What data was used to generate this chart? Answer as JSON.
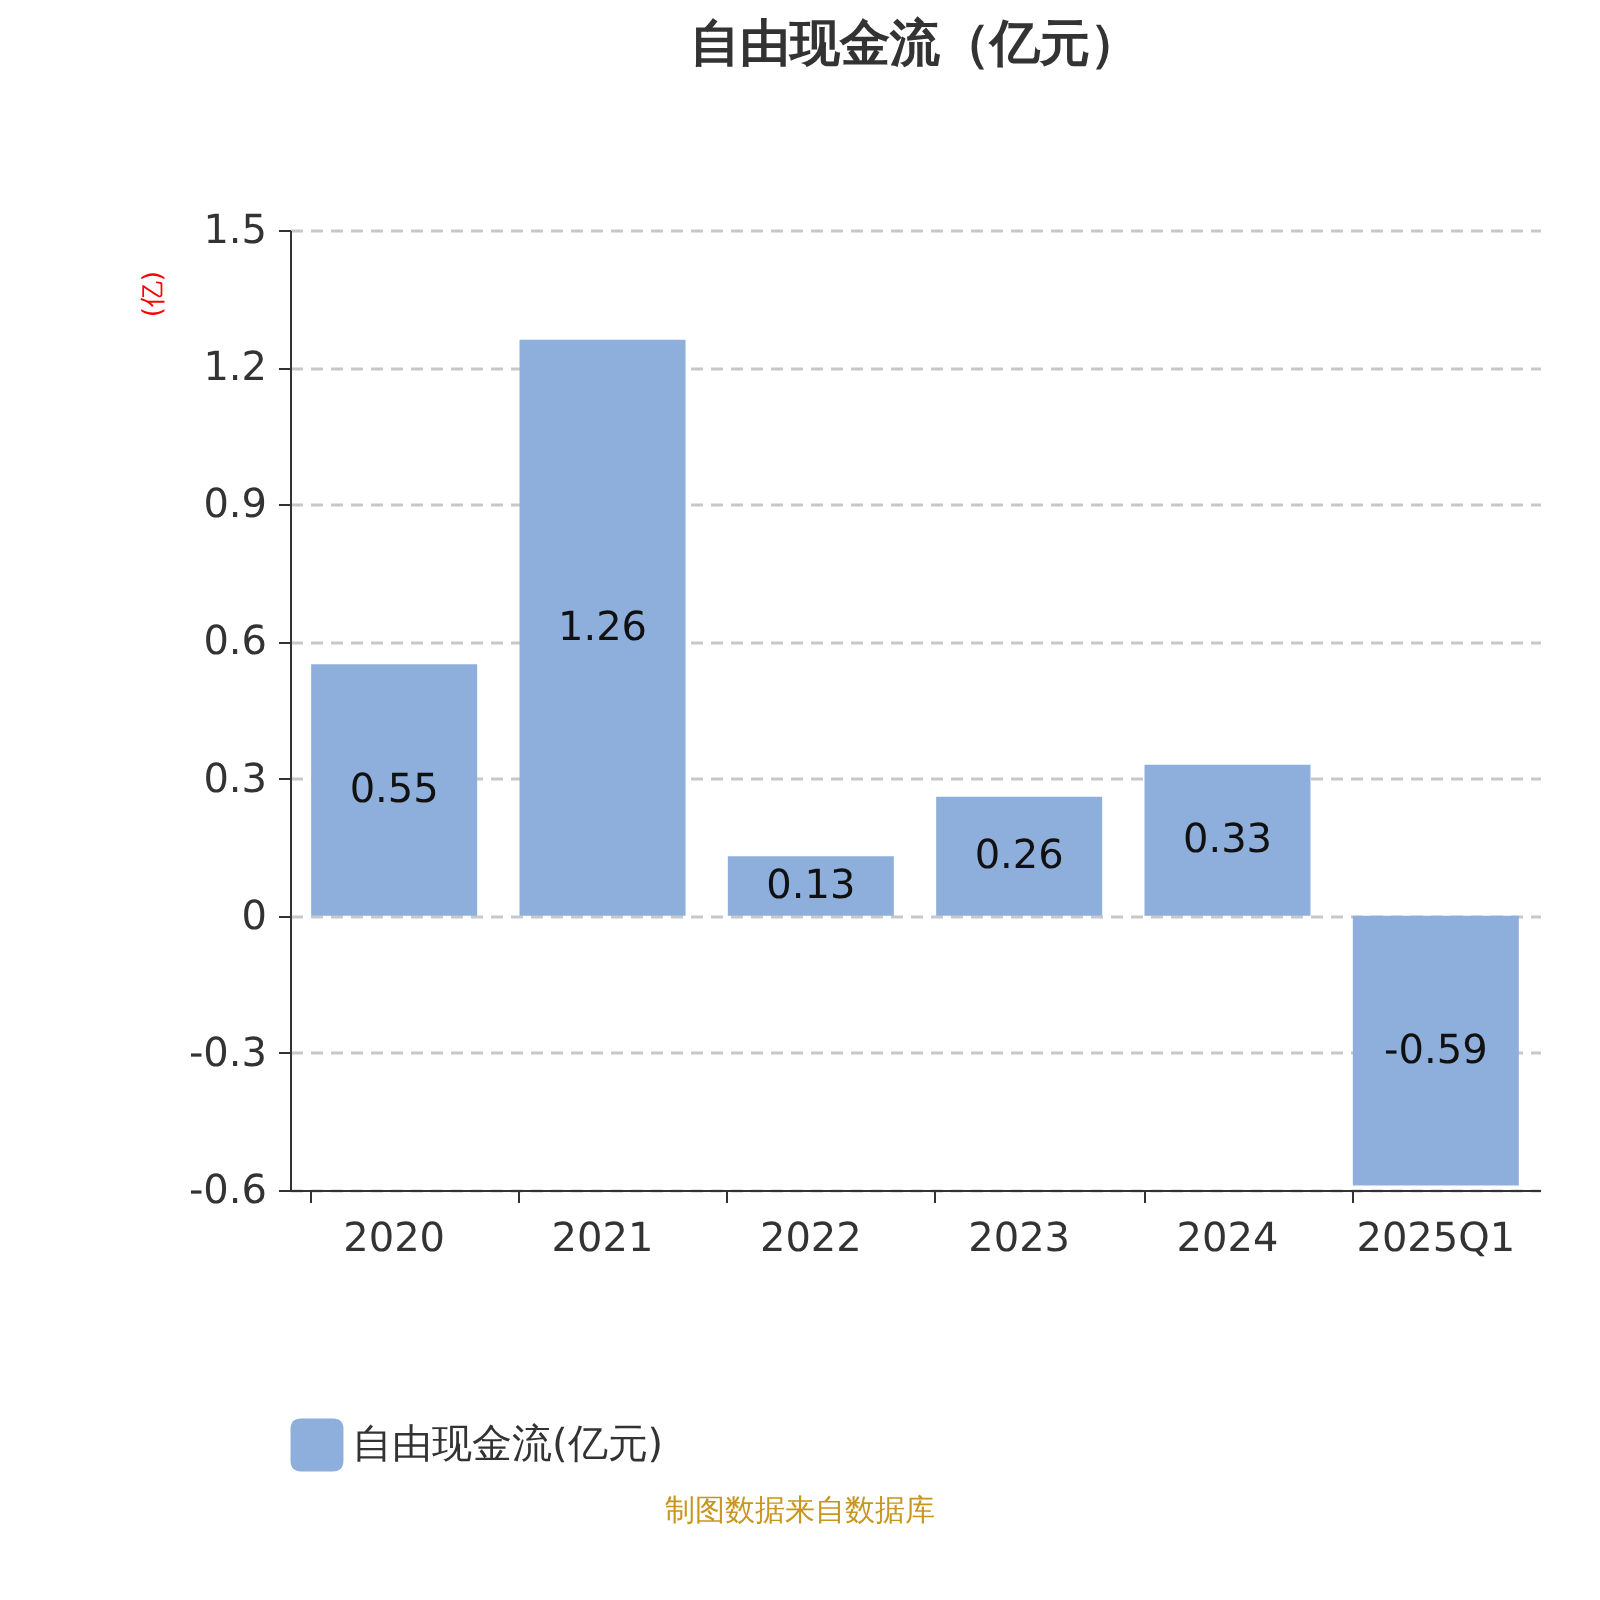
{
  "chart_data": {
    "type": "bar",
    "title": "自由现金流（亿元）",
    "ylabel": "(亿)",
    "categories": [
      "2020",
      "2021",
      "2022",
      "2023",
      "2024",
      "2025Q1"
    ],
    "series": [
      {
        "name": "自由现金流(亿元)",
        "color": "#8eaedb",
        "values": [
          0.55,
          1.26,
          0.13,
          0.26,
          0.33,
          -0.59
        ]
      }
    ],
    "ylim": [
      -0.6,
      1.5
    ],
    "yticks": [
      -0.6,
      -0.3,
      0,
      0.3,
      0.6,
      0.9,
      1.2,
      1.5
    ],
    "grid": "y",
    "legend": "bottom",
    "data_labels": true,
    "annotations": [
      "制图数据来自数据库"
    ]
  }
}
